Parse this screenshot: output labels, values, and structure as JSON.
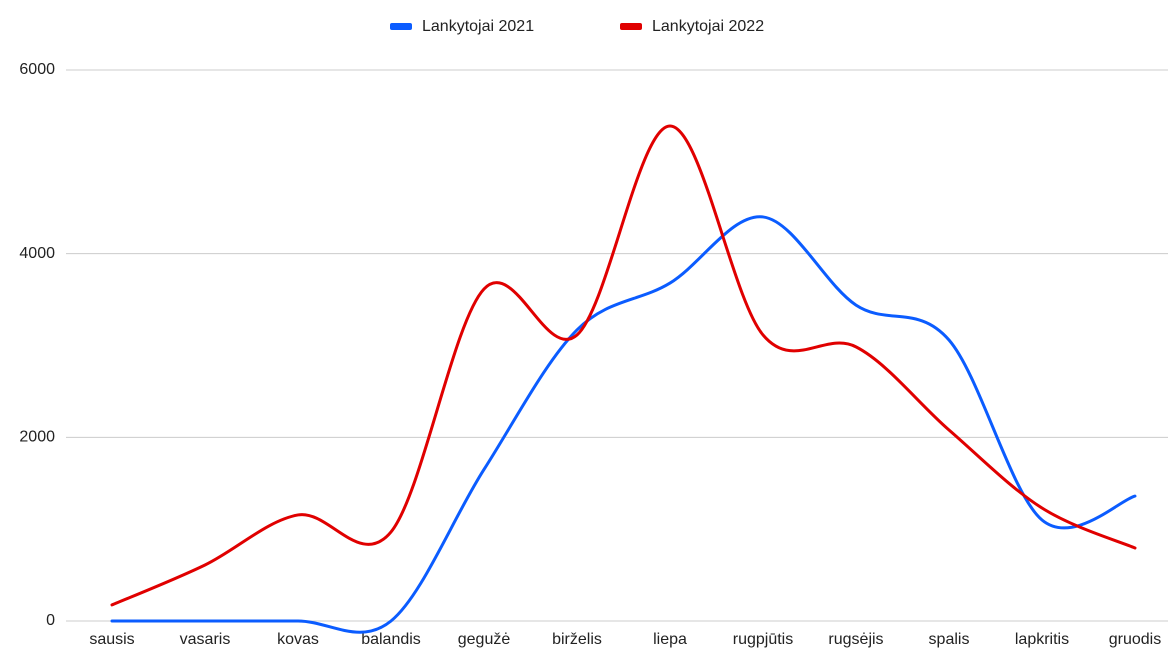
{
  "chart_data": {
    "type": "line",
    "categories": [
      "sausis",
      "vasaris",
      "kovas",
      "balandis",
      "gegužė",
      "birželis",
      "liepa",
      "rugpjūtis",
      "rugsėjis",
      "spalis",
      "lapkritis",
      "gruodis"
    ],
    "series": [
      {
        "name": "Lankytojai 2021",
        "color": "#0b5cff",
        "values": [
          0,
          0,
          0,
          0,
          1650,
          3170,
          3680,
          4400,
          3440,
          3060,
          1100,
          1360
        ]
      },
      {
        "name": "Lankytojai 2022",
        "color": "#e00000",
        "values": [
          175,
          610,
          1155,
          970,
          3615,
          3115,
          5390,
          3115,
          2985,
          2080,
          1230,
          795
        ]
      }
    ],
    "ylim": [
      0,
      6000
    ],
    "yticks": [
      0,
      2000,
      4000,
      6000
    ],
    "grid": true,
    "legend": "top",
    "smooth": true
  }
}
